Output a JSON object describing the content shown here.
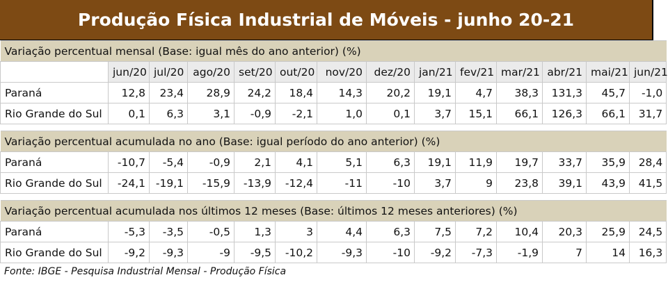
{
  "title": "Produção Física Industrial de Móveis - junho 20-21",
  "months": [
    "jun/20",
    "jul/20",
    "ago/20",
    "set/20",
    "out/20",
    "nov/20",
    "dez/20",
    "jan/21",
    "fev/21",
    "mar/21",
    "abr/21",
    "mai/21",
    "jun/21"
  ],
  "sections": [
    {
      "heading": "Variação percentual mensal (Base: igual mês do ano anterior) (%)",
      "rows": [
        {
          "label": "Paraná",
          "values": [
            "12,8",
            "23,4",
            "28,9",
            "24,2",
            "18,4",
            "14,3",
            "20,2",
            "19,1",
            "4,7",
            "38,3",
            "131,3",
            "45,7",
            "-1,0"
          ]
        },
        {
          "label": "Rio Grande do Sul",
          "values": [
            "0,1",
            "6,3",
            "3,1",
            "-0,9",
            "-2,1",
            "1,0",
            "0,1",
            "3,7",
            "15,1",
            "66,1",
            "126,3",
            "66,1",
            "31,7"
          ]
        }
      ]
    },
    {
      "heading": "Variação percentual acumulada no ano (Base: igual período do ano anterior) (%)",
      "rows": [
        {
          "label": "Paraná",
          "values": [
            "-10,7",
            "-5,4",
            "-0,9",
            "2,1",
            "4,1",
            "5,1",
            "6,3",
            "19,1",
            "11,9",
            "19,7",
            "33,7",
            "35,9",
            "28,4"
          ]
        },
        {
          "label": "Rio Grande do Sul",
          "values": [
            "-24,1",
            "-19,1",
            "-15,9",
            "-13,9",
            "-12,4",
            "-11",
            "-10",
            "3,7",
            "9",
            "23,8",
            "39,1",
            "43,9",
            "41,5"
          ]
        }
      ]
    },
    {
      "heading": "Variação percentual acumulada nos últimos 12 meses (Base: últimos 12 meses anteriores) (%)",
      "rows": [
        {
          "label": "Paraná",
          "values": [
            "-5,3",
            "-3,5",
            "-0,5",
            "1,3",
            "3",
            "4,4",
            "6,3",
            "7,5",
            "7,2",
            "10,4",
            "20,3",
            "25,9",
            "24,5"
          ]
        },
        {
          "label": "Rio Grande do Sul",
          "values": [
            "-9,2",
            "-9,3",
            "-9",
            "-9,5",
            "-10,2",
            "-9,3",
            "-10",
            "-9,2",
            "-7,3",
            "-1,9",
            "7",
            "14",
            "16,3"
          ]
        }
      ]
    }
  ],
  "source": "Fonte: IBGE - Pesquisa Industrial Mensal - Produção Física",
  "colors": {
    "title_bg": "#7d4a14",
    "section_bg": "#d9d2b9",
    "header_bg": "#ebebeb"
  }
}
